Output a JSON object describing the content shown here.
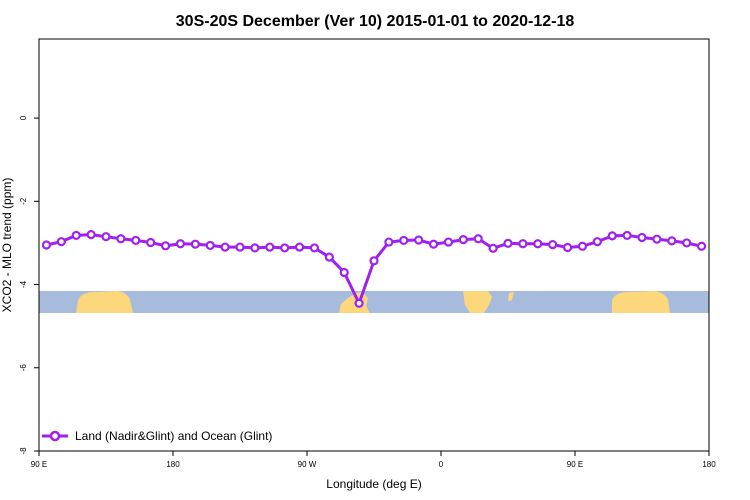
{
  "chart_data": {
    "type": "line",
    "title": "30S-20S December (Ver 10)   2015-01-01 to 2020-12-18",
    "xlabel": "Longitude (deg E)",
    "ylabel": "XCO2 - MLO trend (ppm)",
    "x_tick_labels": [
      "90 E",
      "180",
      "90 W",
      "0",
      "90 E",
      "180"
    ],
    "y_tick_labels": [
      "0",
      "-2",
      "-4",
      "-6",
      "-8"
    ],
    "y_ticks": [
      0,
      -2,
      -4,
      -6,
      -8
    ],
    "xlim": [
      0,
      450
    ],
    "ylim": [
      -8.0,
      1.9
    ],
    "x_tick_positions": [
      0,
      90,
      180,
      270,
      360,
      450
    ],
    "series": [
      {
        "name": "Land (Nadir&Glint) and Ocean (Glint)",
        "color": "#a020f0",
        "x": [
          5,
          15,
          25,
          35,
          45,
          55,
          65,
          75,
          85,
          95,
          105,
          115,
          125,
          135,
          145,
          155,
          165,
          175,
          185,
          195,
          205,
          215,
          225,
          235,
          245,
          255,
          265,
          275,
          285,
          295,
          305,
          315,
          325,
          335,
          345,
          355,
          365,
          375,
          385,
          395,
          405,
          415,
          425,
          435,
          445
        ],
        "values": [
          -3.05,
          -2.97,
          -2.82,
          -2.8,
          -2.85,
          -2.9,
          -2.94,
          -2.99,
          -3.07,
          -3.02,
          -3.03,
          -3.06,
          -3.1,
          -3.1,
          -3.12,
          -3.1,
          -3.12,
          -3.1,
          -3.12,
          -3.34,
          -3.71,
          -4.45,
          -3.43,
          -2.98,
          -2.94,
          -2.93,
          -3.03,
          -2.98,
          -2.92,
          -2.9,
          -3.13,
          -3.01,
          -3.02,
          -3.02,
          -3.04,
          -3.11,
          -3.08,
          -2.97,
          -2.83,
          -2.82,
          -2.87,
          -2.91,
          -2.95,
          -3.0,
          -3.08
        ]
      }
    ],
    "legend_position": "bottom-left",
    "grid": false,
    "land_mask_colors": {
      "ocean": "#a7bcdc",
      "land": "#fdd77c"
    }
  }
}
